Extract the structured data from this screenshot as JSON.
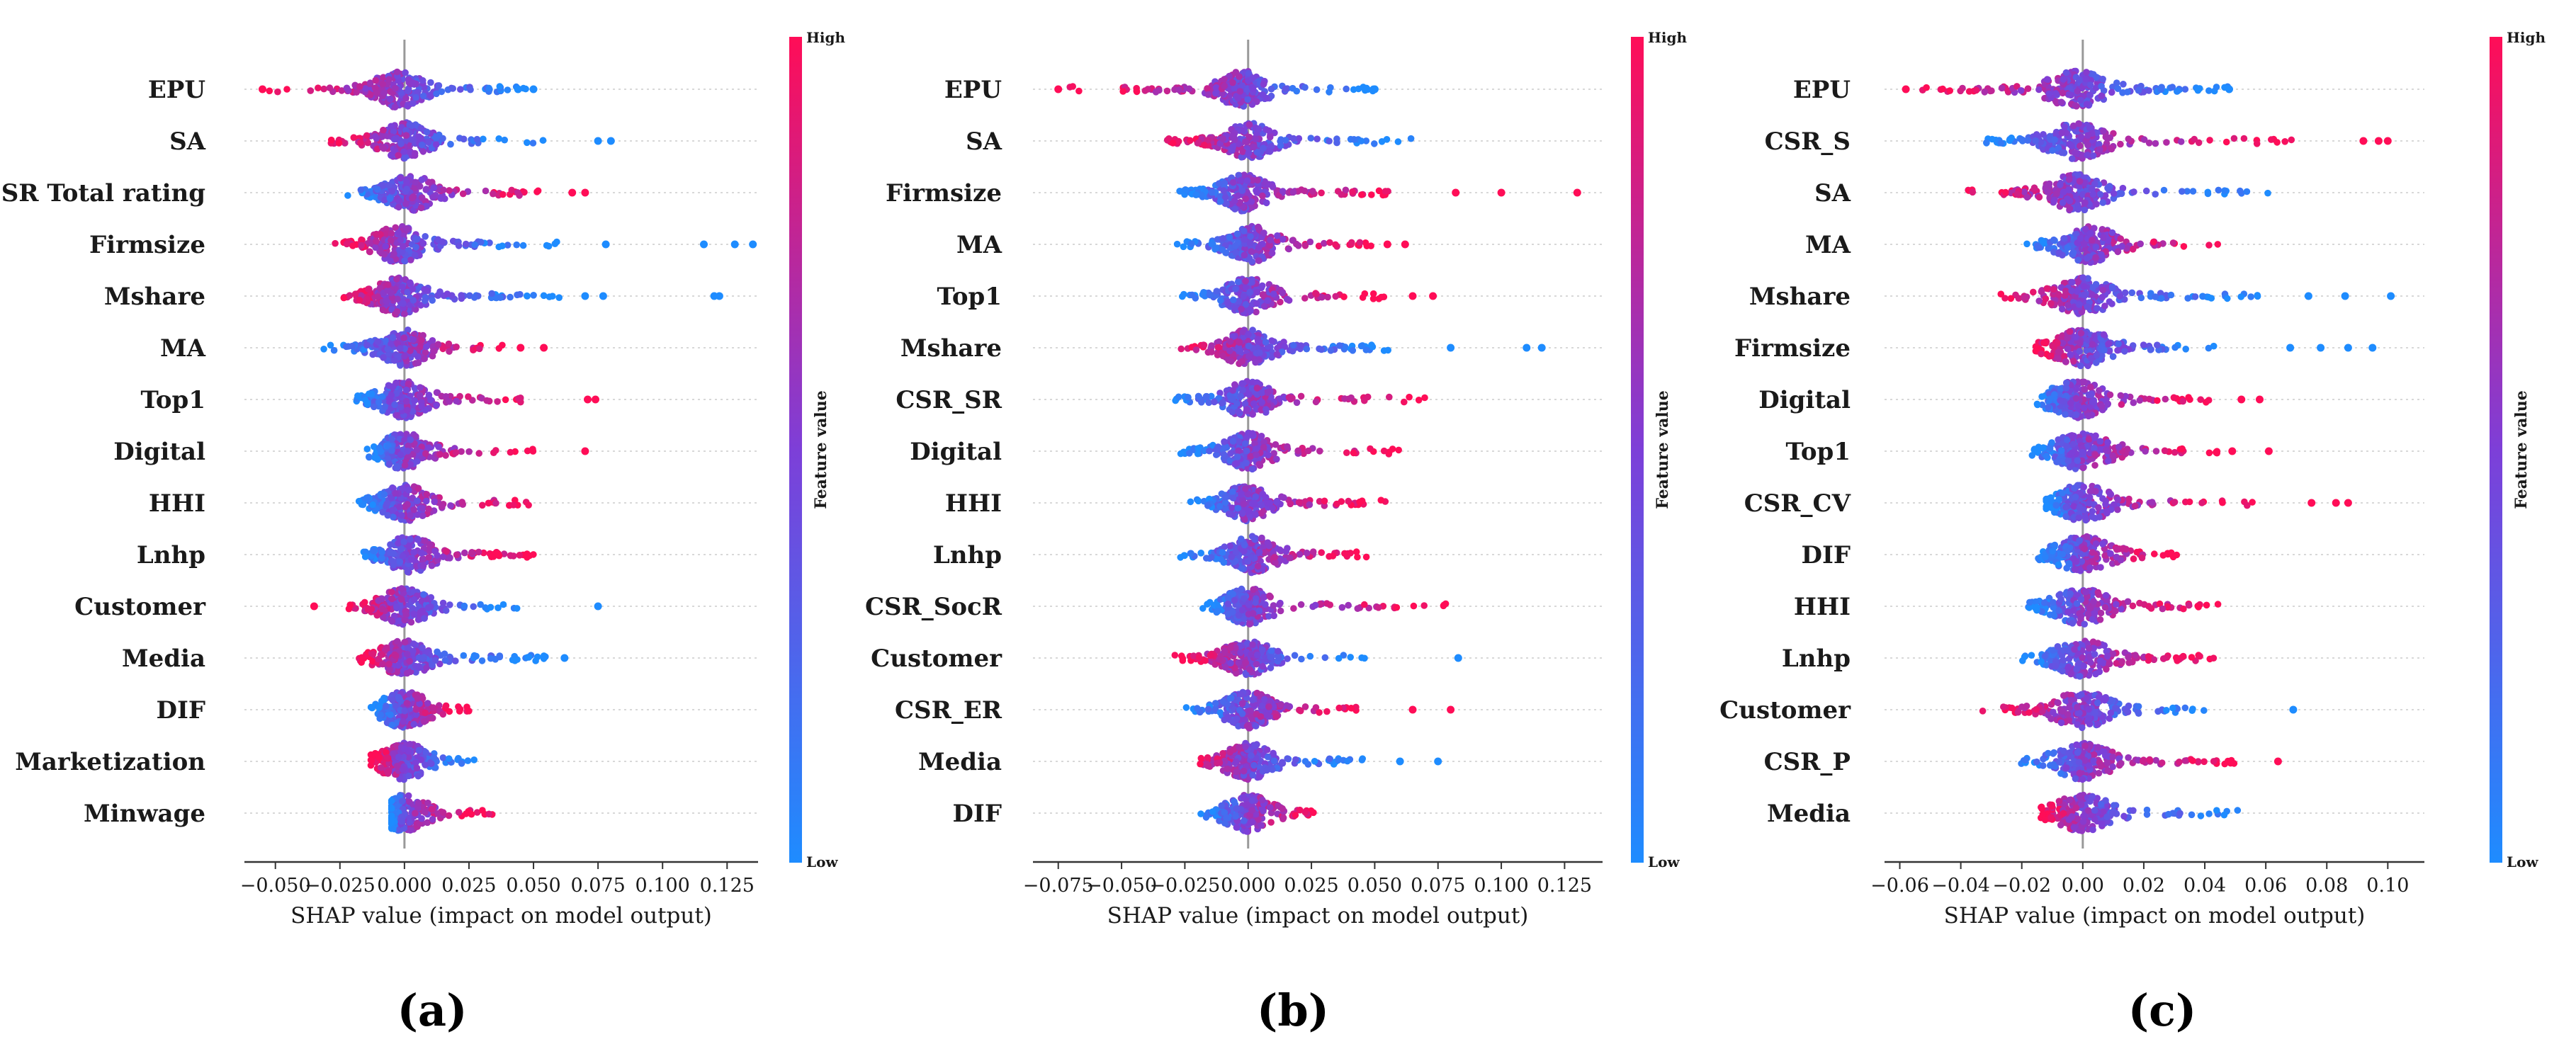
{
  "colors": {
    "low": "#1e8cff",
    "high": "#ff0d57"
  },
  "chart_data": [
    {
      "type": "scatter",
      "subtype": "shap-beeswarm",
      "panel_label": "(a)",
      "xlabel": "SHAP value (impact on model output)",
      "xlim": [
        -0.062,
        0.137
      ],
      "xticks": [
        -0.05,
        -0.025,
        0.0,
        0.025,
        0.05,
        0.075,
        0.1,
        0.125
      ],
      "xtick_labels": [
        "−0.050",
        "−0.025",
        "0.000",
        "0.025",
        "0.050",
        "0.075",
        "0.100",
        "0.125"
      ],
      "colorbar": {
        "title": "Feature value",
        "high_label": "High",
        "low_label": "Low"
      },
      "features": [
        {
          "name": "EPU",
          "min": -0.055,
          "max": 0.05,
          "center": -0.002,
          "outliers": [
            -0.055,
            0.044,
            0.05
          ],
          "trend": -1
        },
        {
          "name": "SA",
          "min": -0.032,
          "max": 0.055,
          "center": 0.0,
          "outliers": [
            0.075,
            0.08
          ],
          "trend": -1
        },
        {
          "name": "CSR Total rating",
          "min": -0.025,
          "max": 0.06,
          "center": 0.002,
          "outliers": [
            0.065,
            0.07
          ],
          "trend": 1
        },
        {
          "name": "Firmsize",
          "min": -0.027,
          "max": 0.06,
          "center": -0.002,
          "outliers": [
            0.078,
            0.116,
            0.128,
            0.135
          ],
          "trend": -1
        },
        {
          "name": "Mshare",
          "min": -0.027,
          "max": 0.06,
          "center": -0.002,
          "outliers": [
            0.07,
            0.077,
            0.12,
            0.122
          ],
          "trend": -1
        },
        {
          "name": "MA",
          "min": -0.033,
          "max": 0.038,
          "center": 0.0,
          "outliers": [
            0.045,
            0.054
          ],
          "trend": 1
        },
        {
          "name": "Top1",
          "min": -0.023,
          "max": 0.052,
          "center": 0.0,
          "outliers": [
            0.071,
            0.074
          ],
          "trend": 1
        },
        {
          "name": "Digital",
          "min": -0.015,
          "max": 0.05,
          "center": 0.0,
          "outliers": [
            0.07
          ],
          "trend": 1
        },
        {
          "name": "HHI",
          "min": -0.02,
          "max": 0.05,
          "center": 0.0,
          "outliers": [],
          "trend": 1
        },
        {
          "name": "Lnhp",
          "min": -0.02,
          "max": 0.05,
          "center": 0.002,
          "outliers": [],
          "trend": 1
        },
        {
          "name": "Customer",
          "min": -0.025,
          "max": 0.045,
          "center": 0.0,
          "outliers": [
            -0.035,
            0.075
          ],
          "trend": -1
        },
        {
          "name": "Media",
          "min": -0.02,
          "max": 0.055,
          "center": 0.0,
          "outliers": [
            0.062
          ],
          "trend": -1
        },
        {
          "name": "DIF",
          "min": -0.013,
          "max": 0.025,
          "center": 0.0,
          "outliers": [],
          "trend": 1
        },
        {
          "name": "Marketization",
          "min": -0.013,
          "max": 0.027,
          "center": 0.0,
          "outliers": [],
          "trend": -1
        },
        {
          "name": "Minwage",
          "min": -0.005,
          "max": 0.036,
          "center": 0.0,
          "outliers": [],
          "trend": 1
        }
      ]
    },
    {
      "type": "scatter",
      "subtype": "shap-beeswarm",
      "panel_label": "(b)",
      "xlabel": "SHAP value (impact on model output)",
      "xlim": [
        -0.085,
        0.14
      ],
      "xticks": [
        -0.075,
        -0.05,
        -0.025,
        0.0,
        0.025,
        0.05,
        0.075,
        0.1,
        0.125
      ],
      "xtick_labels": [
        "−0.075",
        "−0.050",
        "−0.025",
        "0.000",
        "0.025",
        "0.050",
        "0.075",
        "0.100",
        "0.125"
      ],
      "colorbar": {
        "title": "Feature value",
        "high_label": "High",
        "low_label": "Low"
      },
      "features": [
        {
          "name": "EPU",
          "min": -0.075,
          "max": 0.05,
          "center": -0.002,
          "outliers": [
            -0.075,
            0.05
          ],
          "trend": -1
        },
        {
          "name": "SA",
          "min": -0.035,
          "max": 0.065,
          "center": 0.0,
          "outliers": [],
          "trend": -1
        },
        {
          "name": "Firmsize",
          "min": -0.03,
          "max": 0.06,
          "center": -0.002,
          "outliers": [
            0.082,
            0.1,
            0.13
          ],
          "trend": 1
        },
        {
          "name": "MA",
          "min": -0.03,
          "max": 0.05,
          "center": 0.002,
          "outliers": [
            0.055,
            0.062
          ],
          "trend": 1
        },
        {
          "name": "Top1",
          "min": -0.027,
          "max": 0.06,
          "center": 0.0,
          "outliers": [
            0.065,
            0.073
          ],
          "trend": 1
        },
        {
          "name": "Mshare",
          "min": -0.03,
          "max": 0.06,
          "center": 0.0,
          "outliers": [
            0.08,
            0.11,
            0.116
          ],
          "trend": -1
        },
        {
          "name": "CSR_SR",
          "min": -0.032,
          "max": 0.07,
          "center": 0.0,
          "outliers": [],
          "trend": 1
        },
        {
          "name": "Digital",
          "min": -0.027,
          "max": 0.06,
          "center": 0.0,
          "outliers": [],
          "trend": 1
        },
        {
          "name": "HHI",
          "min": -0.025,
          "max": 0.055,
          "center": 0.0,
          "outliers": [],
          "trend": 1
        },
        {
          "name": "Lnhp",
          "min": -0.03,
          "max": 0.047,
          "center": 0.002,
          "outliers": [],
          "trend": 1
        },
        {
          "name": "CSR_SocR",
          "min": -0.018,
          "max": 0.082,
          "center": 0.0,
          "outliers": [],
          "trend": 1
        },
        {
          "name": "Customer",
          "min": -0.033,
          "max": 0.046,
          "center": 0.0,
          "outliers": [
            0.083
          ],
          "trend": -1
        },
        {
          "name": "CSR_ER",
          "min": -0.025,
          "max": 0.046,
          "center": 0.0,
          "outliers": [
            0.065,
            0.08
          ],
          "trend": 1
        },
        {
          "name": "Media",
          "min": -0.027,
          "max": 0.047,
          "center": 0.0,
          "outliers": [
            0.06,
            0.075
          ],
          "trend": -1
        },
        {
          "name": "DIF",
          "min": -0.02,
          "max": 0.03,
          "center": 0.0,
          "outliers": [],
          "trend": 1
        }
      ]
    },
    {
      "type": "scatter",
      "subtype": "shap-beeswarm",
      "panel_label": "(c)",
      "xlabel": "SHAP value (impact on model output)",
      "xlim": [
        -0.065,
        0.112
      ],
      "xticks": [
        -0.06,
        -0.04,
        -0.02,
        0.0,
        0.02,
        0.04,
        0.06,
        0.08,
        0.1
      ],
      "xtick_labels": [
        "−0.06",
        "−0.04",
        "−0.02",
        "0.00",
        "0.02",
        "0.04",
        "0.06",
        "0.08",
        "0.10"
      ],
      "colorbar": {
        "title": "Feature value",
        "high_label": "High",
        "low_label": "Low"
      },
      "features": [
        {
          "name": "EPU",
          "min": -0.058,
          "max": 0.048,
          "center": -0.002,
          "outliers": [
            -0.058,
            0.048
          ],
          "trend": -1
        },
        {
          "name": "CSR_S",
          "min": -0.033,
          "max": 0.075,
          "center": -0.002,
          "outliers": [
            0.092,
            0.097,
            0.1
          ],
          "trend": 1
        },
        {
          "name": "SA",
          "min": -0.04,
          "max": 0.064,
          "center": -0.002,
          "outliers": [],
          "trend": -1
        },
        {
          "name": "MA",
          "min": -0.022,
          "max": 0.045,
          "center": 0.002,
          "outliers": [],
          "trend": 1
        },
        {
          "name": "Mshare",
          "min": -0.03,
          "max": 0.06,
          "center": 0.0,
          "outliers": [
            0.074,
            0.086,
            0.101
          ],
          "trend": -1
        },
        {
          "name": "Firmsize",
          "min": -0.018,
          "max": 0.05,
          "center": 0.0,
          "outliers": [
            0.068,
            0.078,
            0.087,
            0.095
          ],
          "trend": -1
        },
        {
          "name": "Digital",
          "min": -0.017,
          "max": 0.042,
          "center": -0.002,
          "outliers": [
            0.052,
            0.058
          ],
          "trend": 1
        },
        {
          "name": "Top1",
          "min": -0.02,
          "max": 0.045,
          "center": 0.0,
          "outliers": [
            0.049,
            0.061
          ],
          "trend": 1
        },
        {
          "name": "CSR_CV",
          "min": -0.012,
          "max": 0.06,
          "center": 0.0,
          "outliers": [
            0.075,
            0.083,
            0.087
          ],
          "trend": 1
        },
        {
          "name": "DIF",
          "min": -0.015,
          "max": 0.031,
          "center": 0.0,
          "outliers": [],
          "trend": 1
        },
        {
          "name": "HHI",
          "min": -0.02,
          "max": 0.045,
          "center": 0.0,
          "outliers": [],
          "trend": 1
        },
        {
          "name": "Lnhp",
          "min": -0.022,
          "max": 0.044,
          "center": 0.0,
          "outliers": [],
          "trend": 1
        },
        {
          "name": "Customer",
          "min": -0.033,
          "max": 0.041,
          "center": 0.0,
          "outliers": [
            0.069
          ],
          "trend": -1
        },
        {
          "name": "CSR_P",
          "min": -0.022,
          "max": 0.05,
          "center": 0.0,
          "outliers": [
            0.064
          ],
          "trend": 1
        },
        {
          "name": "Media",
          "min": -0.015,
          "max": 0.054,
          "center": 0.0,
          "outliers": [],
          "trend": -1
        }
      ]
    }
  ]
}
